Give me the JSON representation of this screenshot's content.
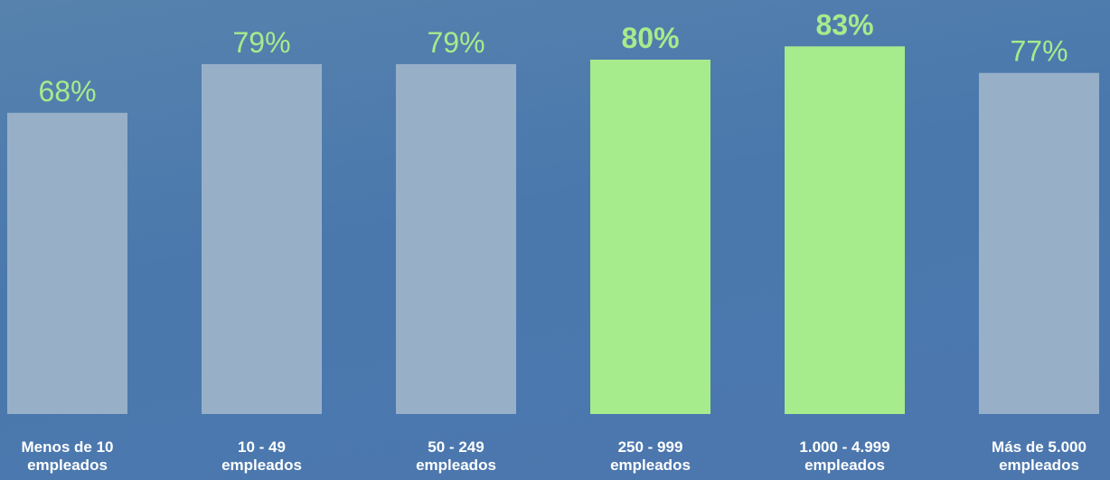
{
  "chart_data": {
    "type": "bar",
    "categories": [
      [
        "Menos de 10",
        "empleados"
      ],
      [
        "10 - 49",
        "empleados"
      ],
      [
        "50 - 249",
        "empleados"
      ],
      [
        "250 - 999",
        "empleados"
      ],
      [
        "1.000 - 4.999",
        "empleados"
      ],
      [
        "Más de 5.000",
        "empleados"
      ]
    ],
    "values": [
      68,
      79,
      79,
      80,
      83,
      77
    ],
    "value_labels": [
      "68%",
      "79%",
      "79%",
      "80%",
      "83%",
      "77%"
    ],
    "highlighted": [
      false,
      false,
      false,
      true,
      true,
      false
    ],
    "ylim": [
      0,
      100
    ],
    "grid": false,
    "legend": "none",
    "title": "",
    "xlabel": "",
    "ylabel": ""
  },
  "colors": {
    "bar_default": "#97b0c8",
    "bar_highlight": "#a6eb8c",
    "value_label": "#a6eb8c",
    "category_label": "#ffffff"
  }
}
